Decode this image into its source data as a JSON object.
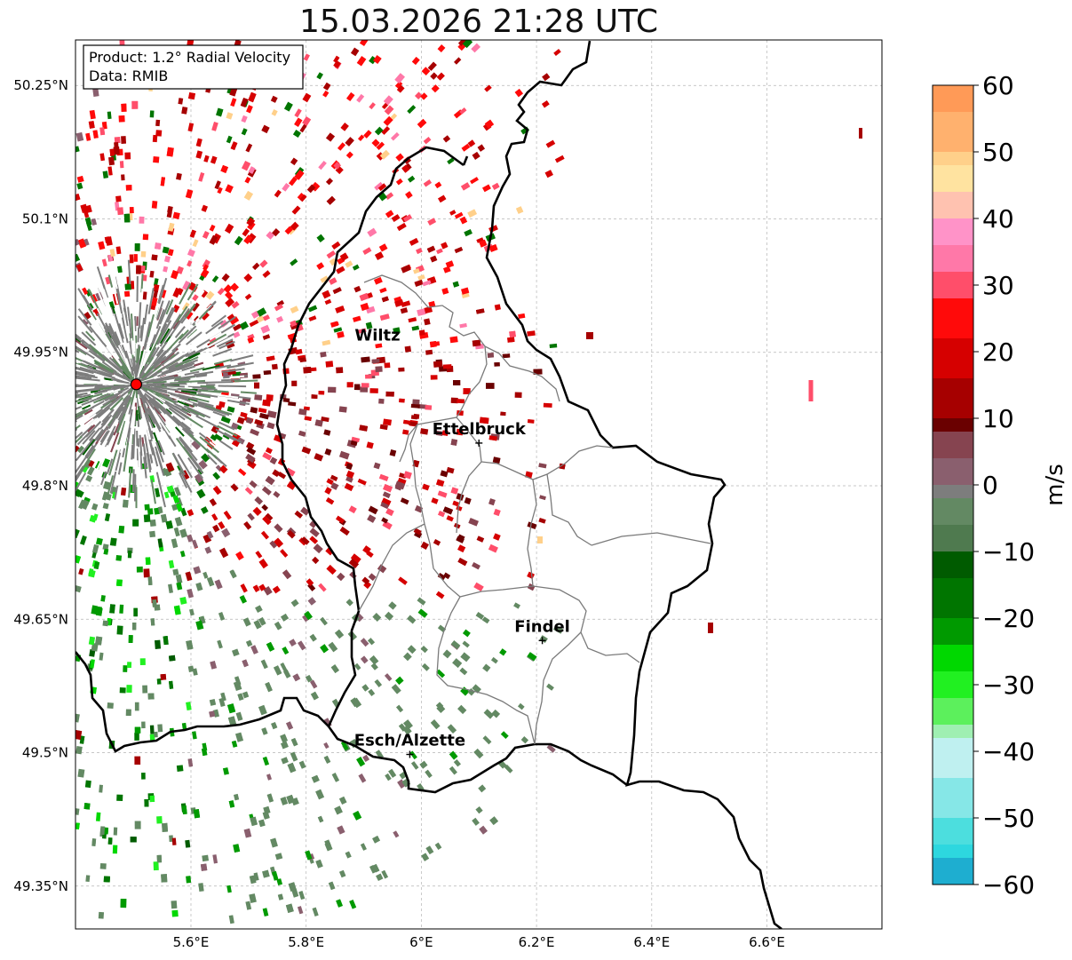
{
  "title": "15.03.2026 21:28 UTC",
  "info_box": {
    "product": "Product: 1.2° Radial Velocity",
    "data_source": "Data: RMIB"
  },
  "map": {
    "extent": {
      "lon_min": 5.4,
      "lon_max": 6.8,
      "lat_min": 49.28,
      "lat_max": 50.3
    },
    "lat_ticks": [
      {
        "value": 50.25,
        "label": "50.25°N"
      },
      {
        "value": 50.1,
        "label": "50.1°N"
      },
      {
        "value": 49.95,
        "label": "49.95°N"
      },
      {
        "value": 49.8,
        "label": "49.8°N"
      },
      {
        "value": 49.65,
        "label": "49.65°N"
      },
      {
        "value": 49.5,
        "label": "49.5°N"
      },
      {
        "value": 49.35,
        "label": "49.35°N"
      }
    ],
    "lon_ticks": [
      {
        "value": 5.6,
        "label": "5.6°E"
      },
      {
        "value": 5.8,
        "label": "5.8°E"
      },
      {
        "value": 6.0,
        "label": "6°E"
      },
      {
        "value": 6.2,
        "label": "6.2°E"
      },
      {
        "value": 6.4,
        "label": "6.4°E"
      },
      {
        "value": 6.6,
        "label": "6.6°E"
      }
    ],
    "radar_site": {
      "lon": 5.505,
      "lat": 49.914
    },
    "cities": [
      {
        "name": "Wiltz",
        "lon": 5.93,
        "lat": 49.966,
        "marker": false
      },
      {
        "name": "Ettelbruck",
        "lon": 6.1,
        "lat": 49.848,
        "marker": true
      },
      {
        "name": "Findel",
        "lon": 6.21,
        "lat": 49.626,
        "marker": true
      },
      {
        "name": "Esch/Alzette",
        "lon": 5.98,
        "lat": 49.498,
        "marker": true
      }
    ],
    "grid": true
  },
  "colorbar": {
    "label": "m/s",
    "min": -60,
    "max": 60,
    "tick_values": [
      60,
      50,
      40,
      30,
      20,
      10,
      0,
      -10,
      -20,
      -30,
      -40,
      -50,
      -60
    ],
    "tick_labels": [
      "60",
      "50",
      "40",
      "30",
      "20",
      "10",
      "0",
      "−10",
      "−20",
      "−30",
      "−40",
      "−50",
      "−60"
    ],
    "stops": [
      {
        "v": 60,
        "c": "#ff9a57"
      },
      {
        "v": 55,
        "c": "#ffb16e"
      },
      {
        "v": 50,
        "c": "#ffd08a"
      },
      {
        "v": 47,
        "c": "#ffe3a0"
      },
      {
        "v": 44,
        "c": "#ffc2b0"
      },
      {
        "v": 40,
        "c": "#ff93c8"
      },
      {
        "v": 36,
        "c": "#ff78a8"
      },
      {
        "v": 32,
        "c": "#ff4e6a"
      },
      {
        "v": 28,
        "c": "#ff0a0a"
      },
      {
        "v": 22,
        "c": "#d60000"
      },
      {
        "v": 16,
        "c": "#a60000"
      },
      {
        "v": 10,
        "c": "#6a0000"
      },
      {
        "v": 8,
        "c": "#864450"
      },
      {
        "v": 4,
        "c": "#8a5f6e"
      },
      {
        "v": 0,
        "c": "#7d7d7d"
      },
      {
        "v": -3,
        "c": "#638963"
      },
      {
        "v": -6,
        "c": "#4f7a4f"
      },
      {
        "v": -10,
        "c": "#005b00"
      },
      {
        "v": -15,
        "c": "#007500"
      },
      {
        "v": -20,
        "c": "#009a00"
      },
      {
        "v": -25,
        "c": "#00d800"
      },
      {
        "v": -28,
        "c": "#21f021"
      },
      {
        "v": -32,
        "c": "#5cf05c"
      },
      {
        "v": -36,
        "c": "#9fefb2"
      },
      {
        "v": -38,
        "c": "#bff0f0"
      },
      {
        "v": -44,
        "c": "#86e7e7"
      },
      {
        "v": -50,
        "c": "#4cdede"
      },
      {
        "v": -54,
        "c": "#2dd7df"
      },
      {
        "v": -57,
        "c": "#1eaed0"
      },
      {
        "v": -60,
        "c": "#1e7fc4"
      }
    ]
  }
}
